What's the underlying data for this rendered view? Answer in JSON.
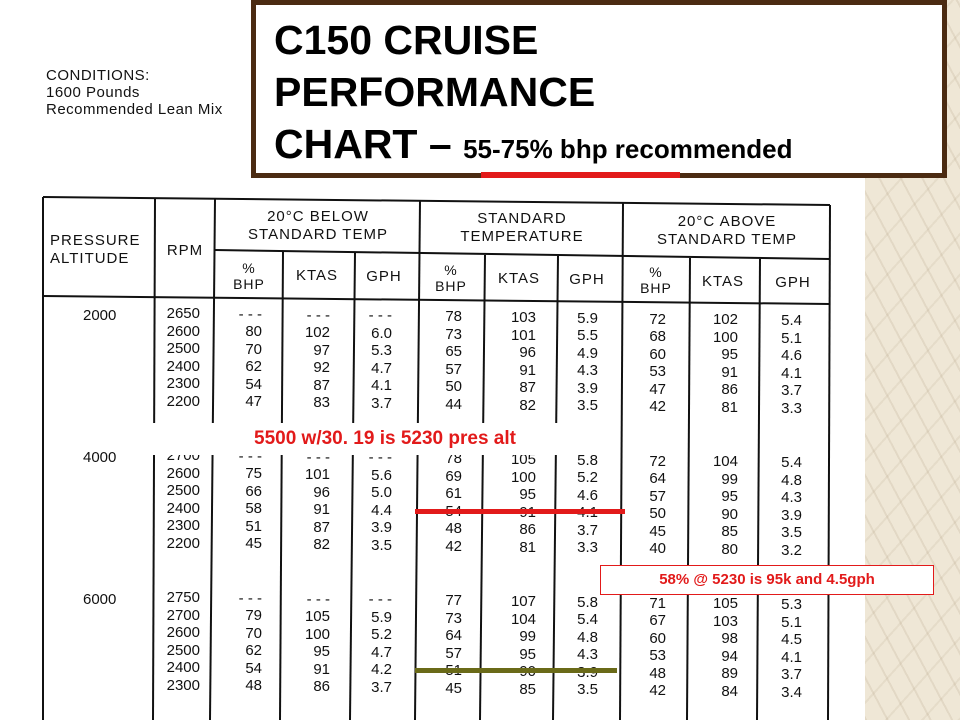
{
  "title": {
    "line1": "C150 CRUISE",
    "line2": "PERFORMANCE",
    "line3": "CHART –",
    "subtitle": "55-75% bhp recommended"
  },
  "conditions": {
    "label": "CONDITIONS:",
    "weight": "1600 Pounds",
    "mixture": "Recommended Lean Mix"
  },
  "headers": {
    "pressure_altitude": "PRESSURE\nALTITUDE",
    "rpm": "RPM",
    "below": "20°C BELOW\nSTANDARD TEMP",
    "standard": "STANDARD\nTEMPERATURE",
    "above": "20°C ABOVE\nSTANDARD TEMP",
    "bhp": "%\nBHP",
    "ktas": "KTAS",
    "gph": "GPH"
  },
  "groups": [
    {
      "altitude": "2000",
      "rows": [
        [
          "2650",
          "- - -",
          "- - -",
          "- - -",
          "78",
          "103",
          "5.9",
          "72",
          "102",
          "5.4"
        ],
        [
          "2600",
          "80",
          "102",
          "6.0",
          "73",
          "101",
          "5.5",
          "68",
          "100",
          "5.1"
        ],
        [
          "2500",
          "70",
          "97",
          "5.3",
          "65",
          "96",
          "4.9",
          "60",
          "95",
          "4.6"
        ],
        [
          "2400",
          "62",
          "92",
          "4.7",
          "57",
          "91",
          "4.3",
          "53",
          "91",
          "4.1"
        ],
        [
          "2300",
          "54",
          "87",
          "4.1",
          "50",
          "87",
          "3.9",
          "47",
          "86",
          "3.7"
        ],
        [
          "2200",
          "47",
          "83",
          "3.7",
          "44",
          "82",
          "3.5",
          "42",
          "81",
          "3.3"
        ]
      ]
    },
    {
      "altitude": "4000",
      "rows": [
        [
          "2700",
          "- - -",
          "- - -",
          "- - -",
          "78",
          "105",
          "5.8",
          "72",
          "104",
          "5.4"
        ],
        [
          "2600",
          "75",
          "101",
          "5.6",
          "69",
          "100",
          "5.2",
          "64",
          "99",
          "4.8"
        ],
        [
          "2500",
          "66",
          "96",
          "5.0",
          "61",
          "95",
          "4.6",
          "57",
          "95",
          "4.3"
        ],
        [
          "2400",
          "58",
          "91",
          "4.4",
          "54",
          "91",
          "4.1",
          "50",
          "90",
          "3.9"
        ],
        [
          "2300",
          "51",
          "87",
          "3.9",
          "48",
          "86",
          "3.7",
          "45",
          "85",
          "3.5"
        ],
        [
          "2200",
          "45",
          "82",
          "3.5",
          "42",
          "81",
          "3.3",
          "40",
          "80",
          "3.2"
        ]
      ]
    },
    {
      "altitude": "6000",
      "rows": [
        [
          "2750",
          "- - -",
          "- - -",
          "- - -",
          "77",
          "107",
          "5.8",
          "71",
          "105",
          "5.3"
        ],
        [
          "2700",
          "79",
          "105",
          "5.9",
          "73",
          "104",
          "5.4",
          "67",
          "103",
          "5.1"
        ],
        [
          "2600",
          "70",
          "100",
          "5.2",
          "64",
          "99",
          "4.8",
          "60",
          "98",
          "4.5"
        ],
        [
          "2500",
          "62",
          "95",
          "4.7",
          "57",
          "95",
          "4.3",
          "53",
          "94",
          "4.1"
        ],
        [
          "2400",
          "54",
          "91",
          "4.2",
          "51",
          "90",
          "3.9",
          "48",
          "89",
          "3.7"
        ],
        [
          "2300",
          "48",
          "86",
          "3.7",
          "45",
          "85",
          "3.5",
          "42",
          "84",
          "3.4"
        ]
      ]
    }
  ],
  "annotations": {
    "pressure_alt_note": "5500 w/30. 19 is 5230 pres alt",
    "result_note": "58% @ 5230 is 95k and 4.5gph"
  },
  "colors": {
    "title_border": "#4b2b12",
    "highlight_red": "#e21a1a",
    "highlight_olive": "#6a6a18"
  }
}
